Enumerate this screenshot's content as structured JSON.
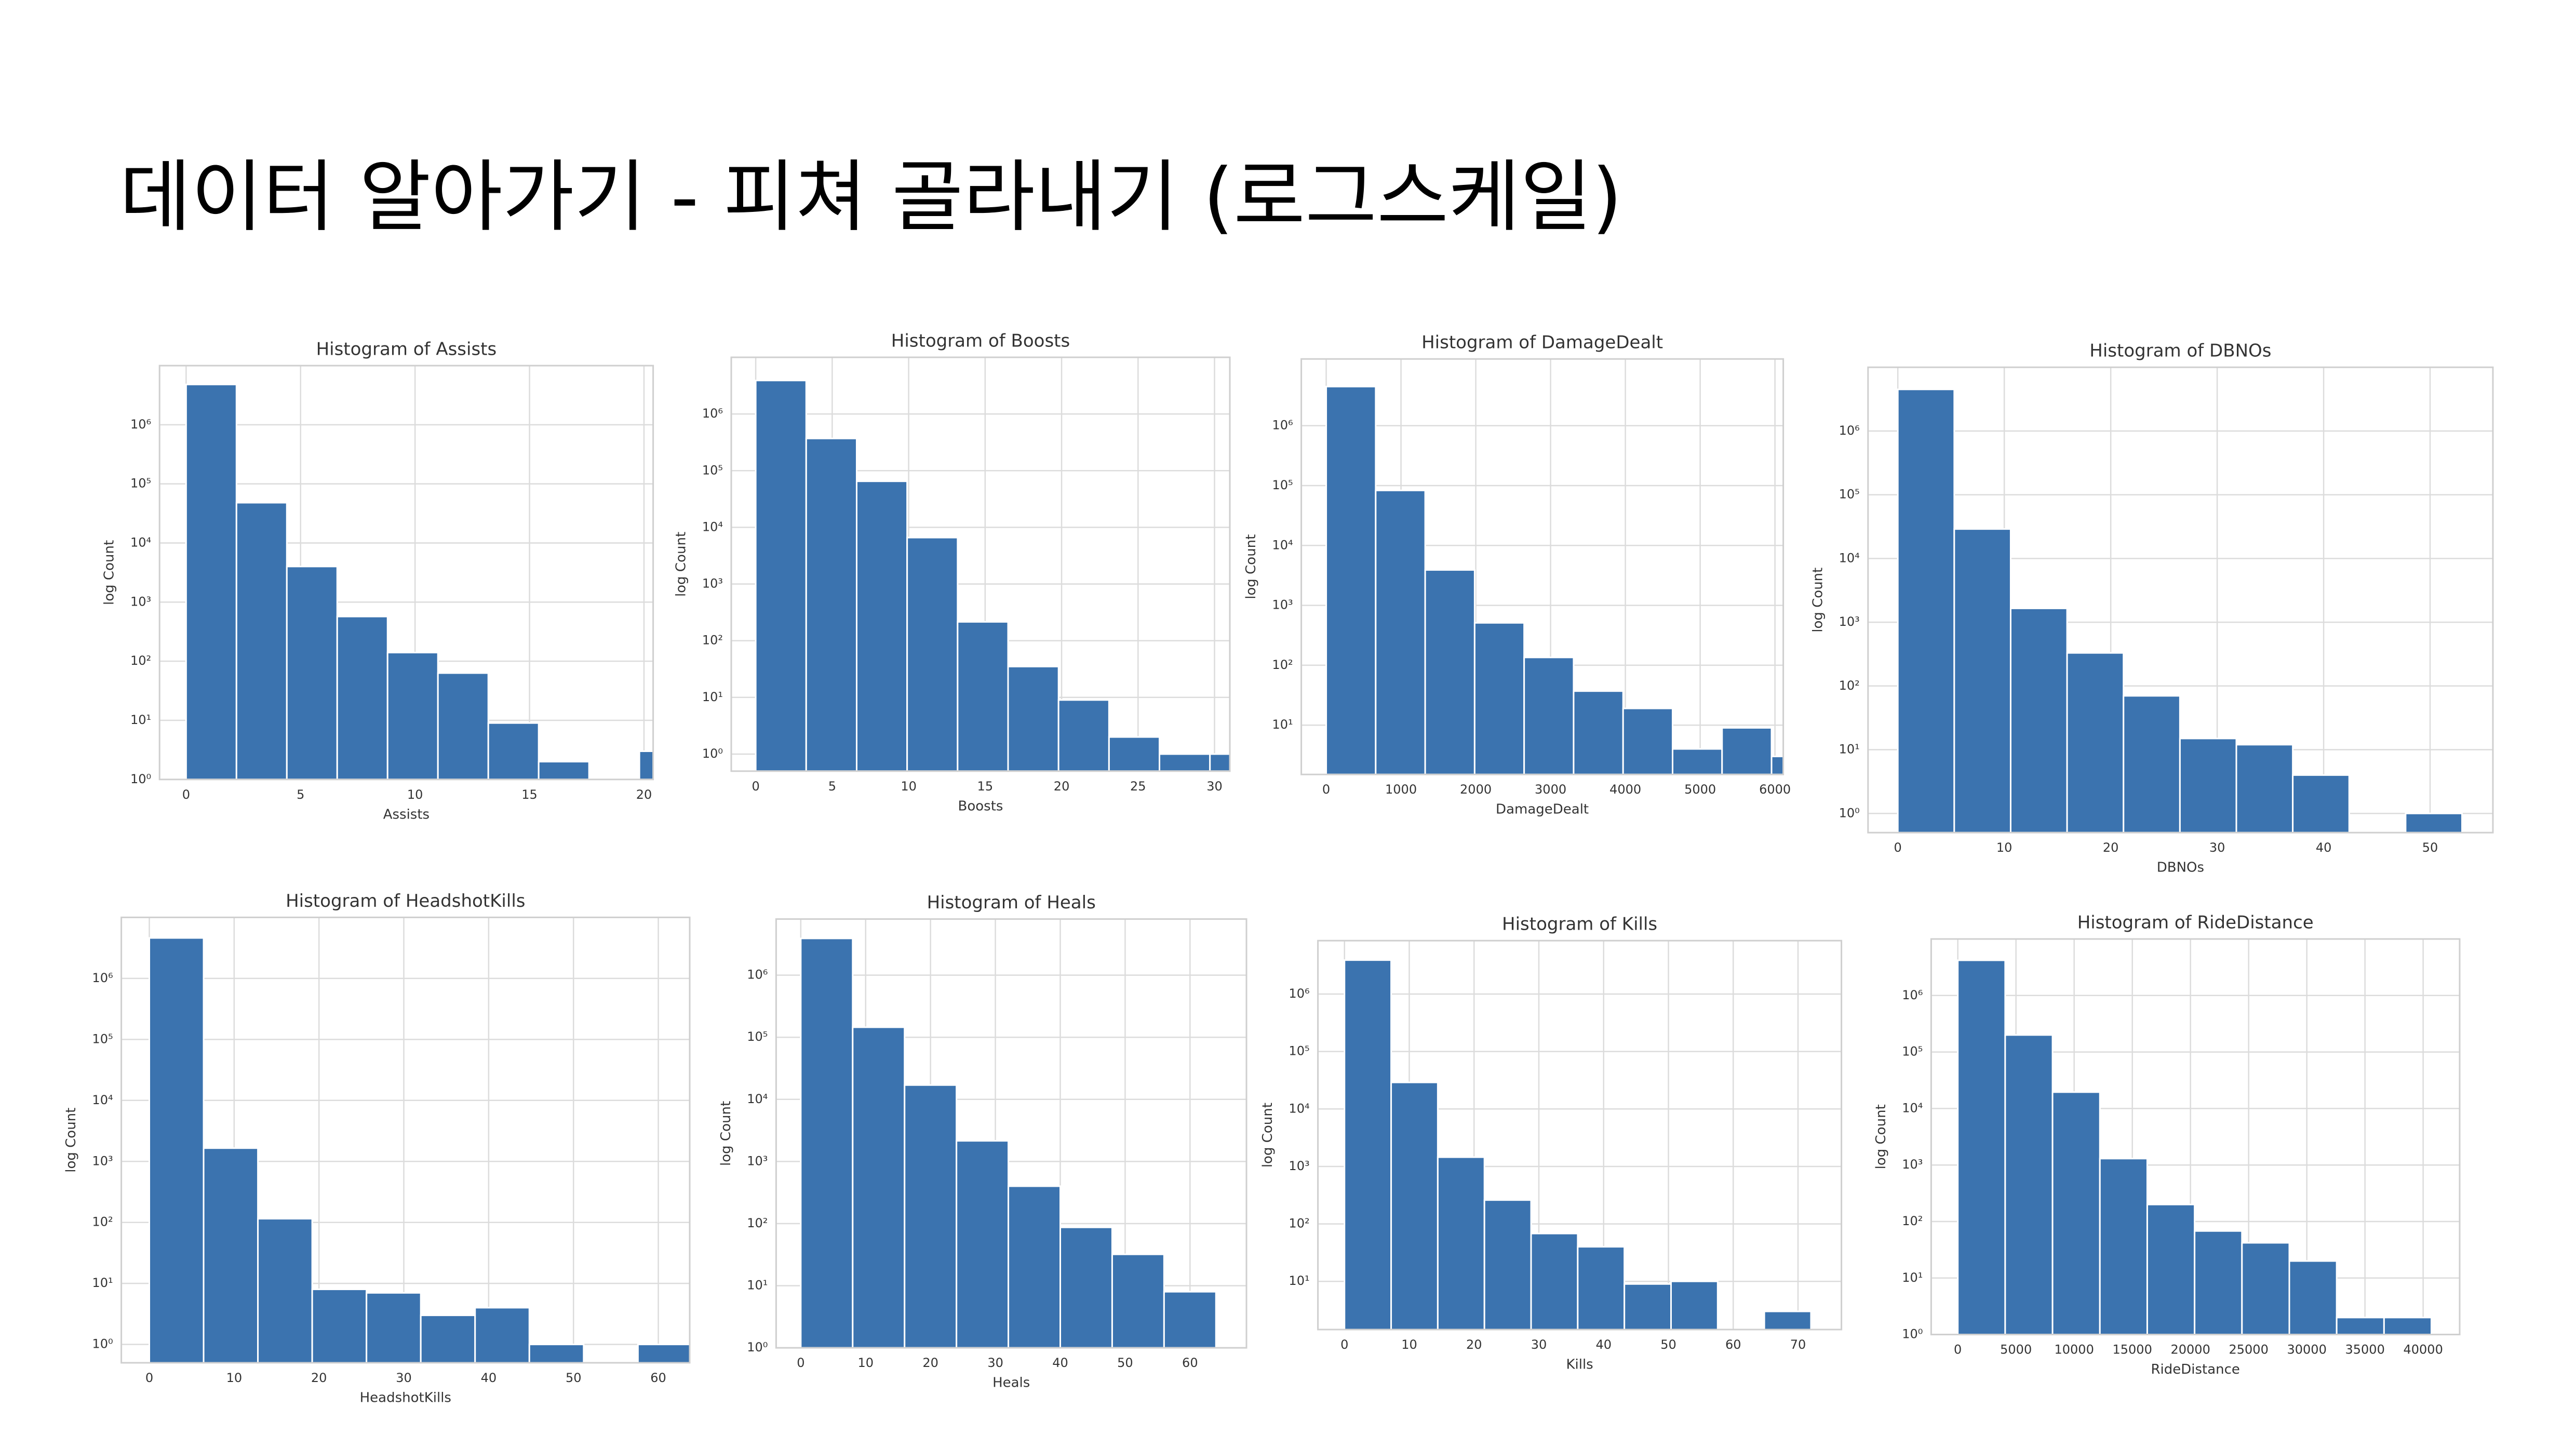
{
  "header": {
    "title": "데이터 알아가기 - 피쳐 골라내기 (로그스케일)"
  },
  "chart_data": [
    {
      "type": "histogram",
      "title": "Histogram of Assists",
      "x_label": "Assists",
      "y_label": "log Count",
      "color": "#3b73af",
      "grid": true,
      "log_y": true,
      "bins": [
        0,
        2.2,
        4.4,
        6.6,
        8.8,
        11,
        13.2,
        15.4,
        17.6,
        19.8,
        22
      ],
      "values": [
        4800000,
        48000,
        4000,
        570,
        140,
        63,
        9,
        2,
        0,
        3
      ],
      "xlim": [
        -1.16,
        20.4
      ],
      "xticks": [
        0,
        5,
        10,
        15,
        20
      ],
      "ylim": [
        1,
        10000000
      ],
      "yticks": [
        {
          "value": 1,
          "label": "10⁰"
        },
        {
          "value": 10,
          "label": "10¹"
        },
        {
          "value": 100,
          "label": "10²"
        },
        {
          "value": 1000,
          "label": "10³"
        },
        {
          "value": 10000,
          "label": "10⁴"
        },
        {
          "value": 100000,
          "label": "10⁵"
        },
        {
          "value": 1000000,
          "label": "10⁶"
        }
      ]
    },
    {
      "type": "histogram",
      "title": "Histogram of Boosts",
      "x_label": "Boosts",
      "y_label": "log Count",
      "color": "#3b73af",
      "grid": true,
      "log_y": true,
      "bins": [
        0,
        3.3,
        6.6,
        9.9,
        13.2,
        16.5,
        19.8,
        23.1,
        26.4,
        29.7,
        33
      ],
      "values": [
        3900000,
        370000,
        65000,
        6600,
        215,
        35,
        9,
        2,
        1,
        1
      ],
      "xlim": [
        -1.6,
        31
      ],
      "xticks": [
        0,
        5,
        10,
        15,
        20,
        25,
        30
      ],
      "ylim": [
        0.5,
        10000000
      ],
      "yticks": [
        {
          "value": 1,
          "label": "10⁰"
        },
        {
          "value": 10,
          "label": "10¹"
        },
        {
          "value": 100,
          "label": "10²"
        },
        {
          "value": 1000,
          "label": "10³"
        },
        {
          "value": 10000,
          "label": "10⁴"
        },
        {
          "value": 100000,
          "label": "10⁵"
        },
        {
          "value": 1000000,
          "label": "10⁶"
        }
      ]
    },
    {
      "type": "histogram",
      "title": "Histogram of DamageDealt",
      "x_label": "DamageDealt",
      "y_label": "log Count",
      "color": "#3b73af",
      "grid": true,
      "log_y": true,
      "bins": [
        0,
        661.6,
        1323.2,
        1984.8,
        2646.4,
        3308,
        3969.6,
        4631.2,
        5292.8,
        5954.4,
        6616
      ],
      "values": [
        4500000,
        83000,
        3900,
        510,
        135,
        37,
        19,
        4,
        9,
        3
      ],
      "xlim": [
        -333,
        6111
      ],
      "xticks": [
        0,
        1000,
        2000,
        3000,
        4000,
        5000,
        6000
      ],
      "ylim": [
        1.5,
        13000000
      ],
      "yticks": [
        {
          "value": 10,
          "label": "10¹"
        },
        {
          "value": 100,
          "label": "10²"
        },
        {
          "value": 1000,
          "label": "10³"
        },
        {
          "value": 10000,
          "label": "10⁴"
        },
        {
          "value": 100000,
          "label": "10⁵"
        },
        {
          "value": 1000000,
          "label": "10⁶"
        }
      ]
    },
    {
      "type": "histogram",
      "title": "Histogram of DBNOs",
      "x_label": "DBNOs",
      "y_label": "log Count",
      "color": "#3b73af",
      "grid": true,
      "log_y": true,
      "bins": [
        0,
        5.3,
        10.6,
        15.9,
        21.2,
        26.5,
        31.8,
        37.1,
        42.4,
        47.7,
        53
      ],
      "values": [
        4500000,
        29000,
        1650,
        330,
        70,
        15,
        12,
        4,
        0,
        1
      ],
      "xlim": [
        -2.8,
        55.9
      ],
      "xticks": [
        0,
        10,
        20,
        30,
        40,
        50
      ],
      "ylim": [
        0.5,
        10000000
      ],
      "yticks": [
        {
          "value": 1,
          "label": "10⁰"
        },
        {
          "value": 10,
          "label": "10¹"
        },
        {
          "value": 100,
          "label": "10²"
        },
        {
          "value": 1000,
          "label": "10³"
        },
        {
          "value": 10000,
          "label": "10⁴"
        },
        {
          "value": 100000,
          "label": "10⁵"
        },
        {
          "value": 1000000,
          "label": "10⁶"
        }
      ]
    },
    {
      "type": "histogram",
      "title": "Histogram of HeadshotKills",
      "x_label": "HeadshotKills",
      "y_label": "log Count",
      "color": "#3b73af",
      "grid": true,
      "log_y": true,
      "bins": [
        0,
        6.4,
        12.8,
        19.2,
        25.6,
        32,
        38.4,
        44.8,
        51.2,
        57.6,
        64
      ],
      "values": [
        4600000,
        1650,
        115,
        8,
        7,
        3,
        4,
        1,
        0,
        1
      ],
      "xlim": [
        -3.3,
        63.7
      ],
      "xticks": [
        0,
        10,
        20,
        30,
        40,
        50,
        60
      ],
      "ylim": [
        0.5,
        10000000
      ],
      "yticks": [
        {
          "value": 1,
          "label": "10⁰"
        },
        {
          "value": 10,
          "label": "10¹"
        },
        {
          "value": 100,
          "label": "10²"
        },
        {
          "value": 1000,
          "label": "10³"
        },
        {
          "value": 10000,
          "label": "10⁴"
        },
        {
          "value": 100000,
          "label": "10⁵"
        },
        {
          "value": 1000000,
          "label": "10⁶"
        }
      ]
    },
    {
      "type": "histogram",
      "title": "Histogram of Heals",
      "x_label": "Heals",
      "y_label": "log Count",
      "color": "#3b73af",
      "grid": true,
      "log_y": true,
      "bins": [
        0,
        8,
        16,
        24,
        32,
        40,
        48,
        56,
        64
      ],
      "values": [
        3900000,
        145000,
        17000,
        2150,
        400,
        87,
        32,
        8
      ],
      "xlim": [
        -3.8,
        68.7
      ],
      "xticks": [
        0,
        10,
        20,
        30,
        40,
        50,
        60
      ],
      "ylim": [
        1,
        8000000
      ],
      "yticks": [
        {
          "value": 1,
          "label": "10⁰"
        },
        {
          "value": 10,
          "label": "10¹"
        },
        {
          "value": 100,
          "label": "10²"
        },
        {
          "value": 1000,
          "label": "10³"
        },
        {
          "value": 10000,
          "label": "10⁴"
        },
        {
          "value": 100000,
          "label": "10⁵"
        },
        {
          "value": 1000000,
          "label": "10⁶"
        }
      ]
    },
    {
      "type": "histogram",
      "title": "Histogram of Kills",
      "x_label": "Kills",
      "y_label": "log Count",
      "color": "#3b73af",
      "grid": true,
      "log_y": true,
      "bins": [
        0,
        7.2,
        14.4,
        21.6,
        28.8,
        36,
        43.2,
        50.4,
        57.6,
        64.8,
        72
      ],
      "values": [
        3900000,
        29000,
        1450,
        260,
        68,
        40,
        9,
        10,
        0,
        3
      ],
      "xlim": [
        -4.1,
        76.7
      ],
      "xticks": [
        0,
        10,
        20,
        30,
        40,
        50,
        60,
        70
      ],
      "ylim": [
        1.45,
        8500000
      ],
      "yticks": [
        {
          "value": 10,
          "label": "10¹"
        },
        {
          "value": 100,
          "label": "10²"
        },
        {
          "value": 1000,
          "label": "10³"
        },
        {
          "value": 10000,
          "label": "10⁴"
        },
        {
          "value": 100000,
          "label": "10⁵"
        },
        {
          "value": 1000000,
          "label": "10⁶"
        }
      ]
    },
    {
      "type": "histogram",
      "title": "Histogram of RideDistance",
      "x_label": "RideDistance",
      "y_label": "log Count",
      "color": "#3b73af",
      "grid": true,
      "log_y": true,
      "bins": [
        0,
        4071,
        8142,
        12213,
        16284,
        20355,
        24426,
        28497,
        32568,
        36639,
        40710
      ],
      "values": [
        4200000,
        200000,
        19500,
        1300,
        200,
        68,
        42,
        20,
        2,
        2
      ],
      "xlim": [
        -2290,
        43140
      ],
      "xticks": [
        0,
        5000,
        10000,
        15000,
        20000,
        25000,
        30000,
        35000,
        40000
      ],
      "ylim": [
        1,
        10000000
      ],
      "yticks": [
        {
          "value": 1,
          "label": "10⁰"
        },
        {
          "value": 10,
          "label": "10¹"
        },
        {
          "value": 100,
          "label": "10²"
        },
        {
          "value": 1000,
          "label": "10³"
        },
        {
          "value": 10000,
          "label": "10⁴"
        },
        {
          "value": 100000,
          "label": "10⁵"
        },
        {
          "value": 1000000,
          "label": "10⁶"
        }
      ]
    }
  ]
}
